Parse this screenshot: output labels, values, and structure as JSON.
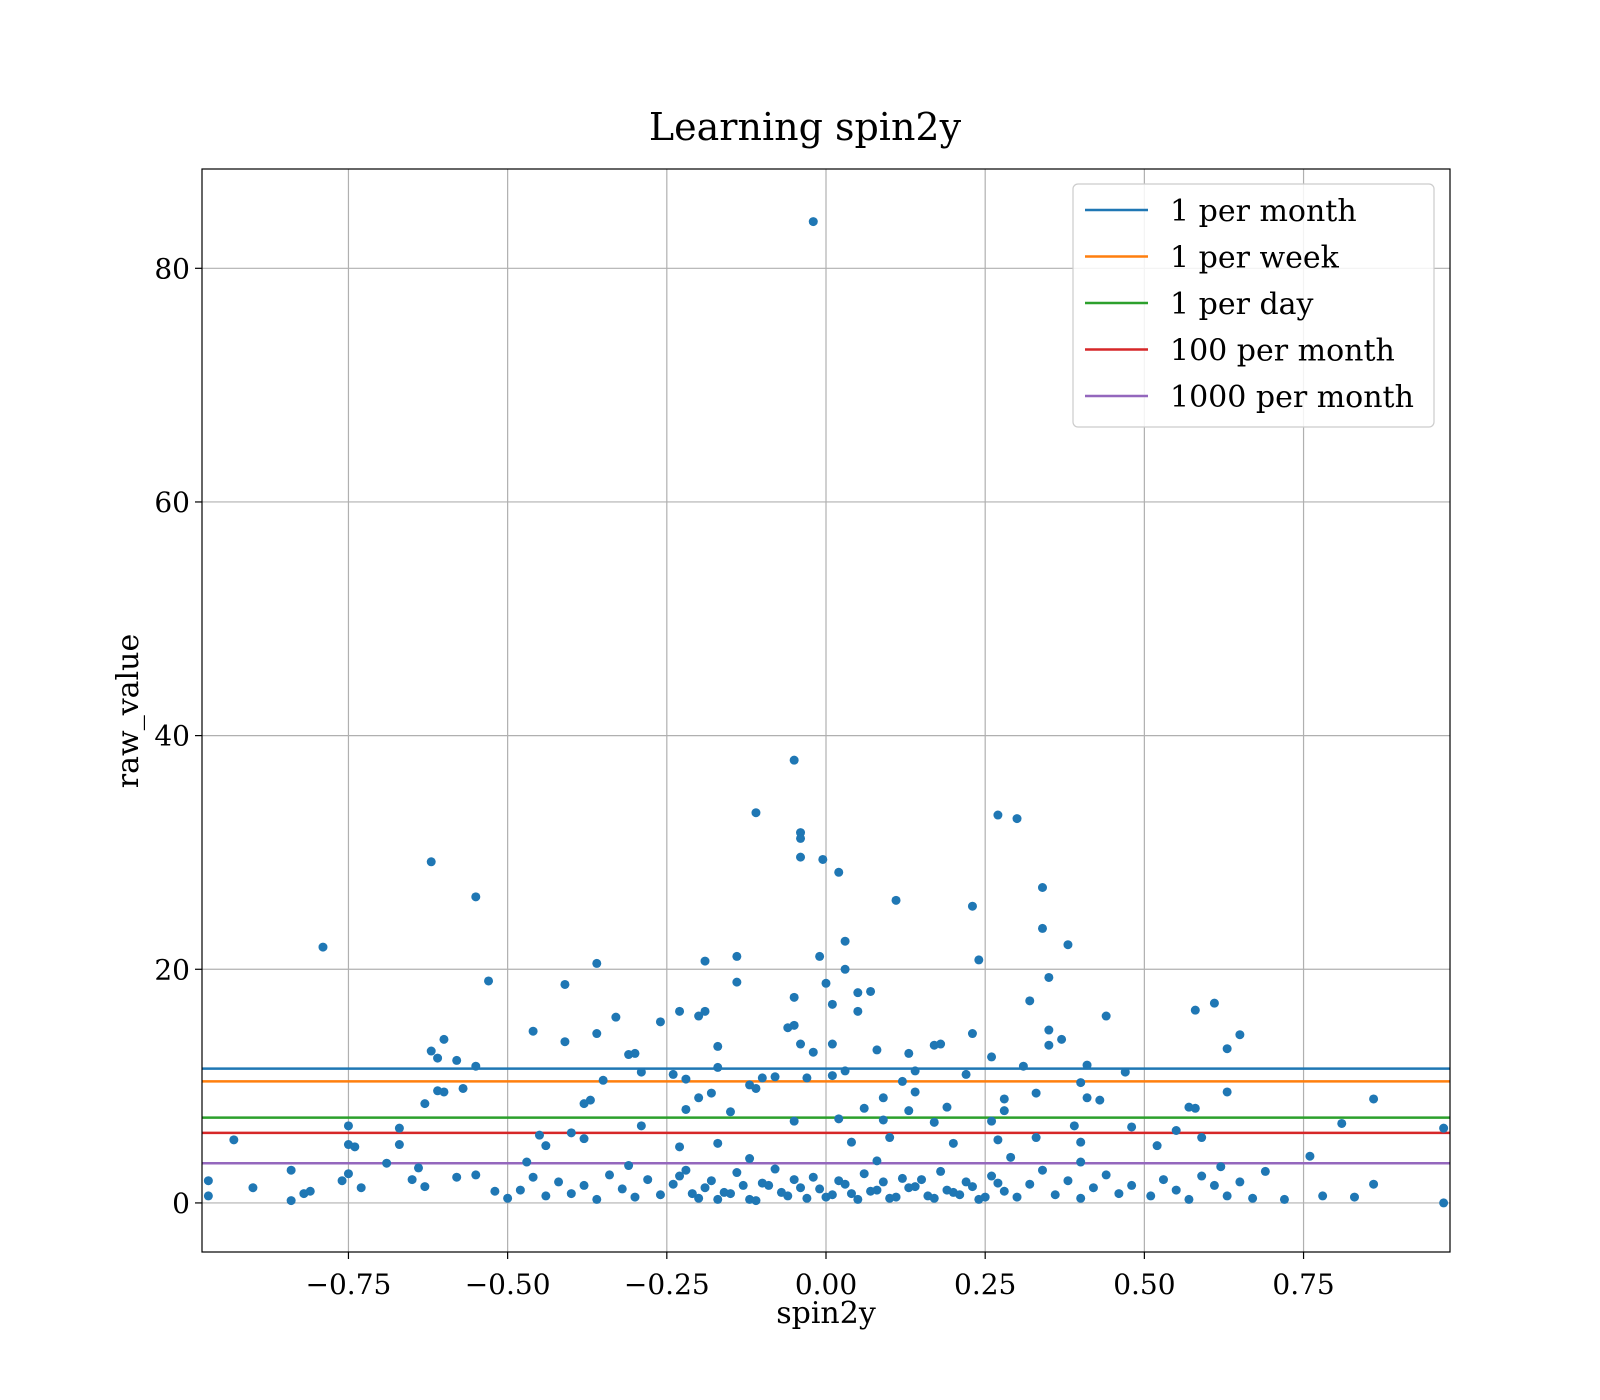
{
  "chart_data": {
    "type": "scatter",
    "title": "Learning spin2y",
    "xlabel": "spin2y",
    "ylabel": "raw_value",
    "xlim": [
      -0.98,
      0.98
    ],
    "ylim": [
      -4.2,
      88.5
    ],
    "xticks": [
      -0.75,
      -0.5,
      -0.25,
      0.0,
      0.25,
      0.5,
      0.75
    ],
    "xtick_labels": [
      "−0.75",
      "−0.50",
      "−0.25",
      "0.00",
      "0.25",
      "0.50",
      "0.75"
    ],
    "yticks": [
      0,
      20,
      40,
      60,
      80
    ],
    "ytick_labels": [
      "0",
      "20",
      "40",
      "60",
      "80"
    ],
    "grid": true,
    "legend_position": "top-right",
    "point_color": "#1f77b4",
    "hlines": [
      {
        "name": "1 per month",
        "y": 11.5,
        "color": "#1f77b4"
      },
      {
        "name": "1 per week",
        "y": 10.4,
        "color": "#ff7f0e"
      },
      {
        "name": "1 per day",
        "y": 7.3,
        "color": "#2ca02c"
      },
      {
        "name": "100 per month",
        "y": 6.0,
        "color": "#d62728"
      },
      {
        "name": "1000 per month",
        "y": 3.4,
        "color": "#9467bd"
      }
    ],
    "points": [
      [
        -0.02,
        84.0
      ],
      [
        -0.05,
        37.9
      ],
      [
        -0.11,
        33.4
      ],
      [
        -0.04,
        31.7
      ],
      [
        -0.04,
        31.2
      ],
      [
        -0.04,
        29.6
      ],
      [
        -0.005,
        29.4
      ],
      [
        0.02,
        28.3
      ],
      [
        -0.62,
        29.2
      ],
      [
        -0.55,
        26.2
      ],
      [
        -0.79,
        21.9
      ],
      [
        -0.53,
        19.0
      ],
      [
        -0.41,
        18.7
      ],
      [
        -0.36,
        20.5
      ],
      [
        0.27,
        33.2
      ],
      [
        0.3,
        32.9
      ],
      [
        0.34,
        27.0
      ],
      [
        0.11,
        25.9
      ],
      [
        0.23,
        25.4
      ],
      [
        0.34,
        23.5
      ],
      [
        0.38,
        22.1
      ],
      [
        0.03,
        22.4
      ],
      [
        -0.01,
        21.1
      ],
      [
        -0.14,
        21.1
      ],
      [
        -0.19,
        20.7
      ],
      [
        0.24,
        20.8
      ],
      [
        0.03,
        20.0
      ],
      [
        0.35,
        19.3
      ],
      [
        -0.14,
        18.9
      ],
      [
        0.0,
        18.8
      ],
      [
        0.05,
        18.0
      ],
      [
        0.07,
        18.1
      ],
      [
        -0.05,
        17.6
      ],
      [
        0.01,
        17.0
      ],
      [
        0.32,
        17.3
      ],
      [
        0.61,
        17.1
      ],
      [
        0.58,
        16.5
      ],
      [
        -0.19,
        16.4
      ],
      [
        -0.2,
        16.0
      ],
      [
        -0.23,
        16.4
      ],
      [
        0.05,
        16.4
      ],
      [
        -0.33,
        15.9
      ],
      [
        -0.26,
        15.5
      ],
      [
        0.44,
        16.0
      ],
      [
        -0.06,
        15.0
      ],
      [
        -0.05,
        15.2
      ],
      [
        0.35,
        14.8
      ],
      [
        0.23,
        14.5
      ],
      [
        0.37,
        14.0
      ],
      [
        0.65,
        14.4
      ],
      [
        -0.46,
        14.7
      ],
      [
        -0.41,
        13.8
      ],
      [
        -0.36,
        14.5
      ],
      [
        -0.6,
        14.0
      ],
      [
        0.17,
        13.5
      ],
      [
        0.18,
        13.6
      ],
      [
        0.35,
        13.5
      ],
      [
        -0.17,
        13.4
      ],
      [
        0.01,
        13.6
      ],
      [
        -0.04,
        13.6
      ],
      [
        -0.62,
        13.0
      ],
      [
        -0.61,
        12.4
      ],
      [
        -0.58,
        12.2
      ],
      [
        -0.31,
        12.7
      ],
      [
        -0.3,
        12.8
      ],
      [
        -0.02,
        12.9
      ],
      [
        0.08,
        13.1
      ],
      [
        0.13,
        12.8
      ],
      [
        0.26,
        12.5
      ],
      [
        0.63,
        13.2
      ],
      [
        -0.55,
        11.7
      ],
      [
        -0.29,
        11.2
      ],
      [
        -0.24,
        11.0
      ],
      [
        -0.17,
        11.6
      ],
      [
        0.14,
        11.3
      ],
      [
        0.31,
        11.7
      ],
      [
        0.41,
        11.8
      ],
      [
        0.47,
        11.2
      ],
      [
        -0.1,
        10.7
      ],
      [
        -0.08,
        10.8
      ],
      [
        -0.03,
        10.7
      ],
      [
        0.01,
        10.9
      ],
      [
        0.03,
        11.3
      ],
      [
        0.12,
        10.4
      ],
      [
        0.22,
        11.0
      ],
      [
        0.4,
        10.3
      ],
      [
        -0.35,
        10.5
      ],
      [
        -0.22,
        10.6
      ],
      [
        -0.12,
        10.1
      ],
      [
        -0.11,
        9.8
      ],
      [
        -0.6,
        9.5
      ],
      [
        -0.61,
        9.6
      ],
      [
        -0.57,
        9.8
      ],
      [
        -0.37,
        8.8
      ],
      [
        -0.2,
        9.0
      ],
      [
        -0.18,
        9.4
      ],
      [
        0.09,
        9.0
      ],
      [
        0.14,
        9.5
      ],
      [
        0.28,
        8.9
      ],
      [
        0.33,
        9.4
      ],
      [
        0.41,
        9.0
      ],
      [
        0.43,
        8.8
      ],
      [
        0.63,
        9.5
      ],
      [
        0.86,
        8.9
      ],
      [
        -0.63,
        8.5
      ],
      [
        -0.38,
        8.5
      ],
      [
        -0.22,
        8.0
      ],
      [
        -0.15,
        7.8
      ],
      [
        0.06,
        8.1
      ],
      [
        0.13,
        7.9
      ],
      [
        0.19,
        8.2
      ],
      [
        0.28,
        7.9
      ],
      [
        0.57,
        8.2
      ],
      [
        0.58,
        8.1
      ],
      [
        -0.75,
        6.6
      ],
      [
        -0.67,
        6.4
      ],
      [
        -0.4,
        6.0
      ],
      [
        -0.29,
        6.6
      ],
      [
        -0.05,
        7.0
      ],
      [
        0.02,
        7.2
      ],
      [
        0.09,
        7.1
      ],
      [
        0.17,
        6.9
      ],
      [
        0.26,
        7.0
      ],
      [
        0.39,
        6.6
      ],
      [
        0.48,
        6.5
      ],
      [
        0.55,
        6.2
      ],
      [
        0.81,
        6.8
      ],
      [
        0.97,
        6.4
      ],
      [
        -0.93,
        5.4
      ],
      [
        -0.75,
        5.0
      ],
      [
        -0.74,
        4.8
      ],
      [
        -0.67,
        5.0
      ],
      [
        -0.45,
        5.8
      ],
      [
        -0.44,
        4.9
      ],
      [
        -0.38,
        5.5
      ],
      [
        -0.23,
        4.8
      ],
      [
        -0.17,
        5.1
      ],
      [
        0.04,
        5.2
      ],
      [
        0.1,
        5.6
      ],
      [
        0.2,
        5.1
      ],
      [
        0.27,
        5.4
      ],
      [
        0.33,
        5.6
      ],
      [
        0.4,
        5.2
      ],
      [
        0.52,
        4.9
      ],
      [
        0.59,
        5.6
      ],
      [
        -0.76,
        1.9
      ],
      [
        -0.75,
        2.5
      ],
      [
        -0.73,
        1.3
      ],
      [
        -0.65,
        2.0
      ],
      [
        -0.63,
        1.4
      ],
      [
        -0.58,
        2.2
      ],
      [
        -0.55,
        2.4
      ],
      [
        -0.52,
        1.0
      ],
      [
        -0.5,
        0.4
      ],
      [
        -0.48,
        1.1
      ],
      [
        -0.46,
        2.2
      ],
      [
        -0.44,
        0.6
      ],
      [
        -0.42,
        1.8
      ],
      [
        -0.4,
        0.8
      ],
      [
        -0.38,
        1.5
      ],
      [
        -0.36,
        0.3
      ],
      [
        -0.34,
        2.4
      ],
      [
        -0.32,
        1.2
      ],
      [
        -0.3,
        0.5
      ],
      [
        -0.28,
        2.0
      ],
      [
        -0.26,
        0.7
      ],
      [
        -0.24,
        1.6
      ],
      [
        -0.22,
        2.8
      ],
      [
        -0.2,
        0.4
      ],
      [
        -0.18,
        1.9
      ],
      [
        -0.16,
        0.9
      ],
      [
        -0.14,
        2.6
      ],
      [
        -0.12,
        0.3
      ],
      [
        -0.1,
        1.7
      ],
      [
        -0.08,
        2.9
      ],
      [
        -0.06,
        0.6
      ],
      [
        -0.04,
        1.3
      ],
      [
        -0.02,
        2.2
      ],
      [
        0.0,
        0.5
      ],
      [
        0.02,
        1.9
      ],
      [
        0.04,
        0.8
      ],
      [
        0.06,
        2.5
      ],
      [
        0.08,
        1.1
      ],
      [
        0.1,
        0.4
      ],
      [
        0.12,
        2.1
      ],
      [
        0.14,
        1.4
      ],
      [
        0.16,
        0.6
      ],
      [
        0.18,
        2.7
      ],
      [
        0.2,
        0.9
      ],
      [
        0.22,
        1.8
      ],
      [
        0.24,
        0.3
      ],
      [
        0.26,
        2.3
      ],
      [
        0.28,
        1.0
      ],
      [
        0.3,
        0.5
      ],
      [
        0.32,
        1.6
      ],
      [
        0.34,
        2.8
      ],
      [
        0.36,
        0.7
      ],
      [
        0.38,
        1.9
      ],
      [
        0.4,
        0.4
      ],
      [
        0.42,
        1.3
      ],
      [
        0.44,
        2.4
      ],
      [
        0.46,
        0.8
      ],
      [
        0.48,
        1.5
      ],
      [
        0.51,
        0.6
      ],
      [
        0.53,
        2.0
      ],
      [
        0.55,
        1.1
      ],
      [
        0.57,
        0.3
      ],
      [
        0.59,
        2.3
      ],
      [
        0.61,
        1.5
      ],
      [
        0.63,
        0.6
      ],
      [
        0.65,
        1.8
      ],
      [
        0.67,
        0.4
      ],
      [
        0.69,
        2.7
      ],
      [
        0.72,
        0.3
      ],
      [
        0.76,
        4.0
      ],
      [
        0.78,
        0.6
      ],
      [
        0.83,
        0.5
      ],
      [
        0.86,
        1.6
      ],
      [
        0.97,
        0.0
      ],
      [
        -0.97,
        0.6
      ],
      [
        -0.97,
        1.9
      ],
      [
        -0.9,
        1.3
      ],
      [
        -0.84,
        2.8
      ],
      [
        -0.82,
        0.8
      ],
      [
        -0.84,
        0.2
      ],
      [
        -0.81,
        1.0
      ],
      [
        -0.69,
        3.4
      ],
      [
        -0.64,
        3.0
      ],
      [
        -0.47,
        3.5
      ],
      [
        -0.31,
        3.2
      ],
      [
        -0.12,
        3.8
      ],
      [
        0.08,
        3.6
      ],
      [
        0.29,
        3.9
      ],
      [
        0.4,
        3.5
      ],
      [
        0.62,
        3.1
      ],
      [
        -0.09,
        1.5
      ],
      [
        -0.07,
        0.9
      ],
      [
        -0.05,
        2.0
      ],
      [
        -0.03,
        0.4
      ],
      [
        -0.01,
        1.2
      ],
      [
        0.01,
        0.7
      ],
      [
        0.03,
        1.6
      ],
      [
        0.05,
        0.3
      ],
      [
        0.07,
        1.0
      ],
      [
        0.09,
        1.8
      ],
      [
        0.11,
        0.5
      ],
      [
        0.13,
        1.3
      ],
      [
        -0.15,
        0.8
      ],
      [
        -0.13,
        1.5
      ],
      [
        -0.11,
        0.2
      ],
      [
        0.15,
        2.0
      ],
      [
        0.17,
        0.4
      ],
      [
        0.19,
        1.1
      ],
      [
        -0.17,
        0.3
      ],
      [
        -0.19,
        1.3
      ],
      [
        0.21,
        0.7
      ],
      [
        0.23,
        1.4
      ],
      [
        -0.21,
        0.8
      ],
      [
        -0.23,
        2.3
      ],
      [
        0.25,
        0.5
      ],
      [
        0.27,
        1.7
      ]
    ]
  }
}
